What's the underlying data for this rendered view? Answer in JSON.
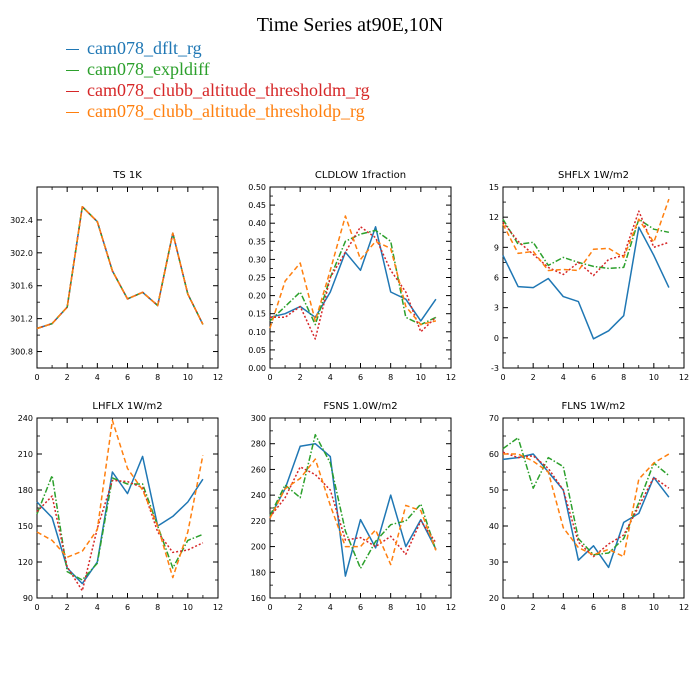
{
  "figure": {
    "title": "Time Series at90E,10N"
  },
  "legend": [
    {
      "label": "cam078_dflt_rg",
      "color": "#1f77b4",
      "dash": "solid"
    },
    {
      "label": "cam078_expldiff",
      "color": "#2ca02c",
      "dash": "dashdot"
    },
    {
      "label": "cam078_clubb_altitude_thresholdm_rg",
      "color": "#d62728",
      "dash": "dotted"
    },
    {
      "label": "cam078_clubb_altitude_thresholdp_rg",
      "color": "#ff7f0e",
      "dash": "dashed"
    }
  ],
  "chart_data": [
    {
      "type": "line",
      "title": "TS   1K",
      "x": [
        0,
        1,
        2,
        3,
        4,
        5,
        6,
        7,
        8,
        9,
        10,
        11
      ],
      "xlim": [
        0,
        12
      ],
      "xticks": [
        0,
        2,
        4,
        6,
        8,
        10,
        12
      ],
      "ylim": [
        300.6,
        302.8
      ],
      "yticks": [
        300.8,
        301.2,
        301.6,
        302.0,
        302.4
      ],
      "ytick_labels": [
        "300.8",
        "301.2",
        "301.6",
        "302.0",
        "302.4"
      ],
      "series": [
        {
          "name": "cam078_dflt_rg",
          "values": [
            301.08,
            301.14,
            301.34,
            302.56,
            302.38,
            301.78,
            301.44,
            301.52,
            301.36,
            302.24,
            301.5,
            301.13
          ]
        },
        {
          "name": "cam078_expldiff",
          "values": [
            301.08,
            301.14,
            301.34,
            302.56,
            302.38,
            301.78,
            301.44,
            301.52,
            301.36,
            302.24,
            301.5,
            301.13
          ]
        },
        {
          "name": "cam078_clubb_altitude_thresholdm_rg",
          "values": [
            301.08,
            301.14,
            301.34,
            302.56,
            302.38,
            301.78,
            301.44,
            301.52,
            301.36,
            302.24,
            301.5,
            301.13
          ]
        },
        {
          "name": "cam078_clubb_altitude_thresholdp_rg",
          "values": [
            301.08,
            301.14,
            301.34,
            302.56,
            302.38,
            301.78,
            301.44,
            301.52,
            301.36,
            302.24,
            301.5,
            301.13
          ]
        }
      ]
    },
    {
      "type": "line",
      "title": "CLDLOW   1fraction",
      "x": [
        0,
        1,
        2,
        3,
        4,
        5,
        6,
        7,
        8,
        9,
        10,
        11
      ],
      "xlim": [
        0,
        12
      ],
      "xticks": [
        0,
        2,
        4,
        6,
        8,
        10,
        12
      ],
      "ylim": [
        0.0,
        0.5
      ],
      "yticks": [
        0.0,
        0.05,
        0.1,
        0.15,
        0.2,
        0.25,
        0.3,
        0.35,
        0.4,
        0.45,
        0.5
      ],
      "ytick_labels": [
        "0.00",
        "0.05",
        "0.10",
        "0.15",
        "0.20",
        "0.25",
        "0.30",
        "0.35",
        "0.40",
        "0.45",
        "0.50"
      ],
      "series": [
        {
          "name": "cam078_dflt_rg",
          "values": [
            0.14,
            0.15,
            0.17,
            0.14,
            0.21,
            0.32,
            0.27,
            0.39,
            0.21,
            0.19,
            0.13,
            0.19
          ]
        },
        {
          "name": "cam078_expldiff",
          "values": [
            0.13,
            0.17,
            0.21,
            0.12,
            0.25,
            0.35,
            0.37,
            0.38,
            0.35,
            0.14,
            0.12,
            0.14
          ]
        },
        {
          "name": "cam078_clubb_altitude_thresholdm_rg",
          "values": [
            0.14,
            0.14,
            0.17,
            0.08,
            0.25,
            0.32,
            0.39,
            0.36,
            0.27,
            0.21,
            0.1,
            0.14
          ]
        },
        {
          "name": "cam078_clubb_altitude_thresholdp_rg",
          "values": [
            0.11,
            0.24,
            0.29,
            0.13,
            0.27,
            0.42,
            0.3,
            0.35,
            0.33,
            0.17,
            0.12,
            0.13
          ]
        }
      ]
    },
    {
      "type": "line",
      "title": "SHFLX   1W/m2",
      "x": [
        0,
        1,
        2,
        3,
        4,
        5,
        6,
        7,
        8,
        9,
        10,
        11
      ],
      "xlim": [
        0,
        12
      ],
      "xticks": [
        0,
        2,
        4,
        6,
        8,
        10,
        12
      ],
      "ylim": [
        -3,
        15
      ],
      "yticks": [
        -3,
        0,
        3,
        6,
        9,
        12,
        15
      ],
      "ytick_labels": [
        "-3",
        "0",
        "3",
        "6",
        "9",
        "12",
        "15"
      ],
      "series": [
        {
          "name": "cam078_dflt_rg",
          "values": [
            8.2,
            5.1,
            5.0,
            5.9,
            4.1,
            3.6,
            -0.1,
            0.7,
            2.2,
            11.0,
            8.2,
            5.0
          ]
        },
        {
          "name": "cam078_expldiff",
          "values": [
            11.8,
            9.3,
            9.5,
            7.2,
            8.0,
            7.5,
            7.1,
            6.9,
            7.0,
            11.8,
            10.8,
            10.5
          ]
        },
        {
          "name": "cam078_clubb_altitude_thresholdm_rg",
          "values": [
            11.5,
            9.6,
            8.3,
            7.0,
            6.3,
            7.5,
            6.2,
            7.8,
            8.2,
            12.6,
            9.0,
            9.5
          ]
        },
        {
          "name": "cam078_clubb_altitude_thresholdp_rg",
          "values": [
            11.3,
            8.4,
            8.6,
            6.7,
            6.8,
            6.7,
            8.8,
            8.9,
            8.0,
            11.8,
            9.5,
            13.8
          ]
        }
      ]
    },
    {
      "type": "line",
      "title": "LHFLX   1W/m2",
      "x": [
        0,
        1,
        2,
        3,
        4,
        5,
        6,
        7,
        8,
        9,
        10,
        11
      ],
      "xlim": [
        0,
        12
      ],
      "xticks": [
        0,
        2,
        4,
        6,
        8,
        10,
        12
      ],
      "ylim": [
        90,
        240
      ],
      "yticks": [
        90,
        120,
        150,
        180,
        210,
        240
      ],
      "ytick_labels": [
        "90",
        "120",
        "150",
        "180",
        "210",
        "240"
      ],
      "series": [
        {
          "name": "cam078_dflt_rg",
          "values": [
            170,
            157,
            115,
            102,
            120,
            195,
            177,
            208,
            150,
            158,
            170,
            189
          ]
        },
        {
          "name": "cam078_expldiff",
          "values": [
            160,
            192,
            112,
            105,
            119,
            190,
            185,
            185,
            150,
            115,
            138,
            143
          ]
        },
        {
          "name": "cam078_clubb_altitude_thresholdm_rg",
          "values": [
            162,
            175,
            116,
            96,
            148,
            188,
            187,
            182,
            145,
            128,
            130,
            136
          ]
        },
        {
          "name": "cam078_clubb_altitude_thresholdp_rg",
          "values": [
            145,
            138,
            124,
            129,
            147,
            238,
            198,
            180,
            150,
            107,
            145,
            209
          ]
        }
      ]
    },
    {
      "type": "line",
      "title": "FSNS   1.0W/m2",
      "x": [
        0,
        1,
        2,
        3,
        4,
        5,
        6,
        7,
        8,
        9,
        10,
        11
      ],
      "xlim": [
        0,
        12
      ],
      "xticks": [
        0,
        2,
        4,
        6,
        8,
        10,
        12
      ],
      "ylim": [
        160,
        300
      ],
      "yticks": [
        160,
        180,
        200,
        220,
        240,
        260,
        280,
        300
      ],
      "ytick_labels": [
        "160",
        "180",
        "200",
        "220",
        "240",
        "260",
        "280",
        "300"
      ],
      "series": [
        {
          "name": "cam078_dflt_rg",
          "values": [
            223,
            245,
            278,
            280,
            270,
            177,
            221,
            199,
            240,
            200,
            221,
            198
          ]
        },
        {
          "name": "cam078_expldiff",
          "values": [
            224,
            248,
            238,
            287,
            265,
            212,
            183,
            204,
            217,
            220,
            233,
            197
          ]
        },
        {
          "name": "cam078_clubb_altitude_thresholdm_rg",
          "values": [
            223,
            238,
            262,
            256,
            244,
            205,
            207,
            200,
            208,
            194,
            220,
            203
          ]
        },
        {
          "name": "cam078_clubb_altitude_thresholdp_rg",
          "values": [
            222,
            245,
            253,
            268,
            232,
            200,
            200,
            213,
            186,
            232,
            228,
            197
          ]
        }
      ]
    },
    {
      "type": "line",
      "title": "FLNS   1W/m2",
      "x": [
        0,
        1,
        2,
        3,
        4,
        5,
        6,
        7,
        8,
        9,
        10,
        11
      ],
      "xlim": [
        0,
        12
      ],
      "xticks": [
        0,
        2,
        4,
        6,
        8,
        10,
        12
      ],
      "ylim": [
        20,
        70
      ],
      "yticks": [
        20,
        30,
        40,
        50,
        60,
        70
      ],
      "ytick_labels": [
        "20",
        "30",
        "40",
        "50",
        "60",
        "70"
      ],
      "series": [
        {
          "name": "cam078_dflt_rg",
          "values": [
            58.5,
            59,
            60,
            55,
            50,
            30.5,
            34.5,
            28.5,
            41,
            43.5,
            53.5,
            48
          ]
        },
        {
          "name": "cam078_expldiff",
          "values": [
            61.5,
            64.5,
            50.5,
            59,
            56.5,
            36.5,
            32,
            32.5,
            36.5,
            46.5,
            57.5,
            54
          ]
        },
        {
          "name": "cam078_clubb_altitude_thresholdm_rg",
          "values": [
            60.5,
            59,
            59.5,
            56,
            50,
            35.5,
            31.5,
            35,
            37.5,
            45.5,
            53.5,
            50.5
          ]
        },
        {
          "name": "cam078_clubb_altitude_thresholdp_rg",
          "values": [
            60,
            60,
            58,
            55,
            39.5,
            34,
            32,
            33.5,
            31.5,
            53,
            57.5,
            60
          ]
        }
      ]
    }
  ]
}
